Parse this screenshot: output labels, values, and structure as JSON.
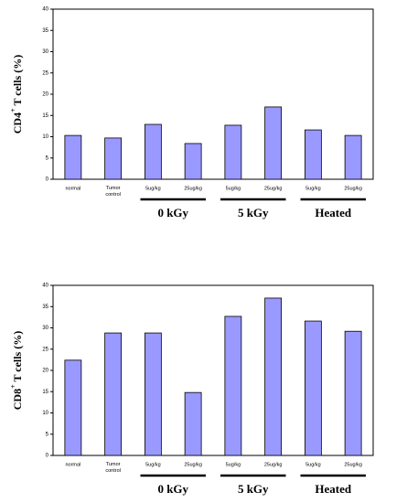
{
  "chart_data": [
    {
      "type": "bar",
      "y_label": {
        "text": "CD4",
        "sup": "+",
        "rest": " T cells (%)"
      },
      "categories": [
        "normal",
        "Tumor control",
        "5ug/kg",
        "25ug/kg",
        "5ug/kg",
        "25ug/kg",
        "5ug/kg",
        "25ug/kg"
      ],
      "values": [
        10.3,
        9.7,
        12.9,
        8.4,
        12.7,
        17,
        11.6,
        10.3
      ],
      "groups": [
        "0 kGy",
        "5 kGy",
        "Heated"
      ],
      "color": "#9999ff",
      "ylim": [
        0,
        40
      ],
      "yticks": [
        0,
        5,
        10,
        15,
        20,
        25,
        30,
        35,
        40
      ]
    },
    {
      "type": "bar",
      "y_label": {
        "text": "CD8",
        "sup": "+",
        "rest": " T cells (%)"
      },
      "categories": [
        "normal",
        "Tumor control",
        "5ug/kg",
        "25ug/kg",
        "5ug/kg",
        "25ug/kg",
        "5ug/kg",
        "25ug/kg"
      ],
      "values": [
        22.4,
        28.8,
        28.8,
        14.8,
        32.7,
        37,
        31.6,
        29.2
      ],
      "groups": [
        "0 kGy",
        "5 kGy",
        "Heated"
      ],
      "color": "#9999ff",
      "ylim": [
        0,
        40
      ],
      "yticks": [
        0,
        5,
        10,
        15,
        20,
        25,
        30,
        35,
        40
      ]
    }
  ]
}
